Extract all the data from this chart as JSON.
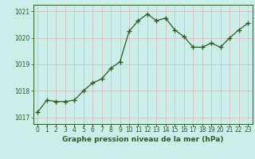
{
  "x": [
    0,
    1,
    2,
    3,
    4,
    5,
    6,
    7,
    8,
    9,
    10,
    11,
    12,
    13,
    14,
    15,
    16,
    17,
    18,
    19,
    20,
    21,
    22,
    23
  ],
  "y": [
    1017.2,
    1017.65,
    1017.6,
    1017.6,
    1017.65,
    1018.0,
    1018.3,
    1018.45,
    1018.85,
    1019.1,
    1020.25,
    1020.65,
    1020.9,
    1020.65,
    1020.75,
    1020.3,
    1020.05,
    1019.65,
    1019.65,
    1019.8,
    1019.65,
    1020.0,
    1020.3,
    1020.55
  ],
  "line_color": "#2d5a27",
  "marker_color": "#2d5a27",
  "bg_color": "#cceee8",
  "grid_color_major": "#d4b8b8",
  "grid_color_minor": "#d4b8b8",
  "xlabel": "Graphe pression niveau de la mer (hPa)",
  "xlabel_color": "#2d5a27",
  "yticks": [
    1017,
    1018,
    1019,
    1020,
    1021
  ],
  "xtick_labels": [
    "0",
    "1",
    "2",
    "3",
    "4",
    "5",
    "6",
    "7",
    "8",
    "9",
    "10",
    "11",
    "12",
    "13",
    "14",
    "15",
    "16",
    "17",
    "18",
    "19",
    "20",
    "21",
    "22",
    "23"
  ],
  "ylim": [
    1016.75,
    1021.25
  ],
  "xlim": [
    -0.5,
    23.5
  ],
  "tick_color": "#2d5a27",
  "axis_color": "#2d5a27",
  "tick_fontsize": 5.5,
  "xlabel_fontsize": 6.5
}
